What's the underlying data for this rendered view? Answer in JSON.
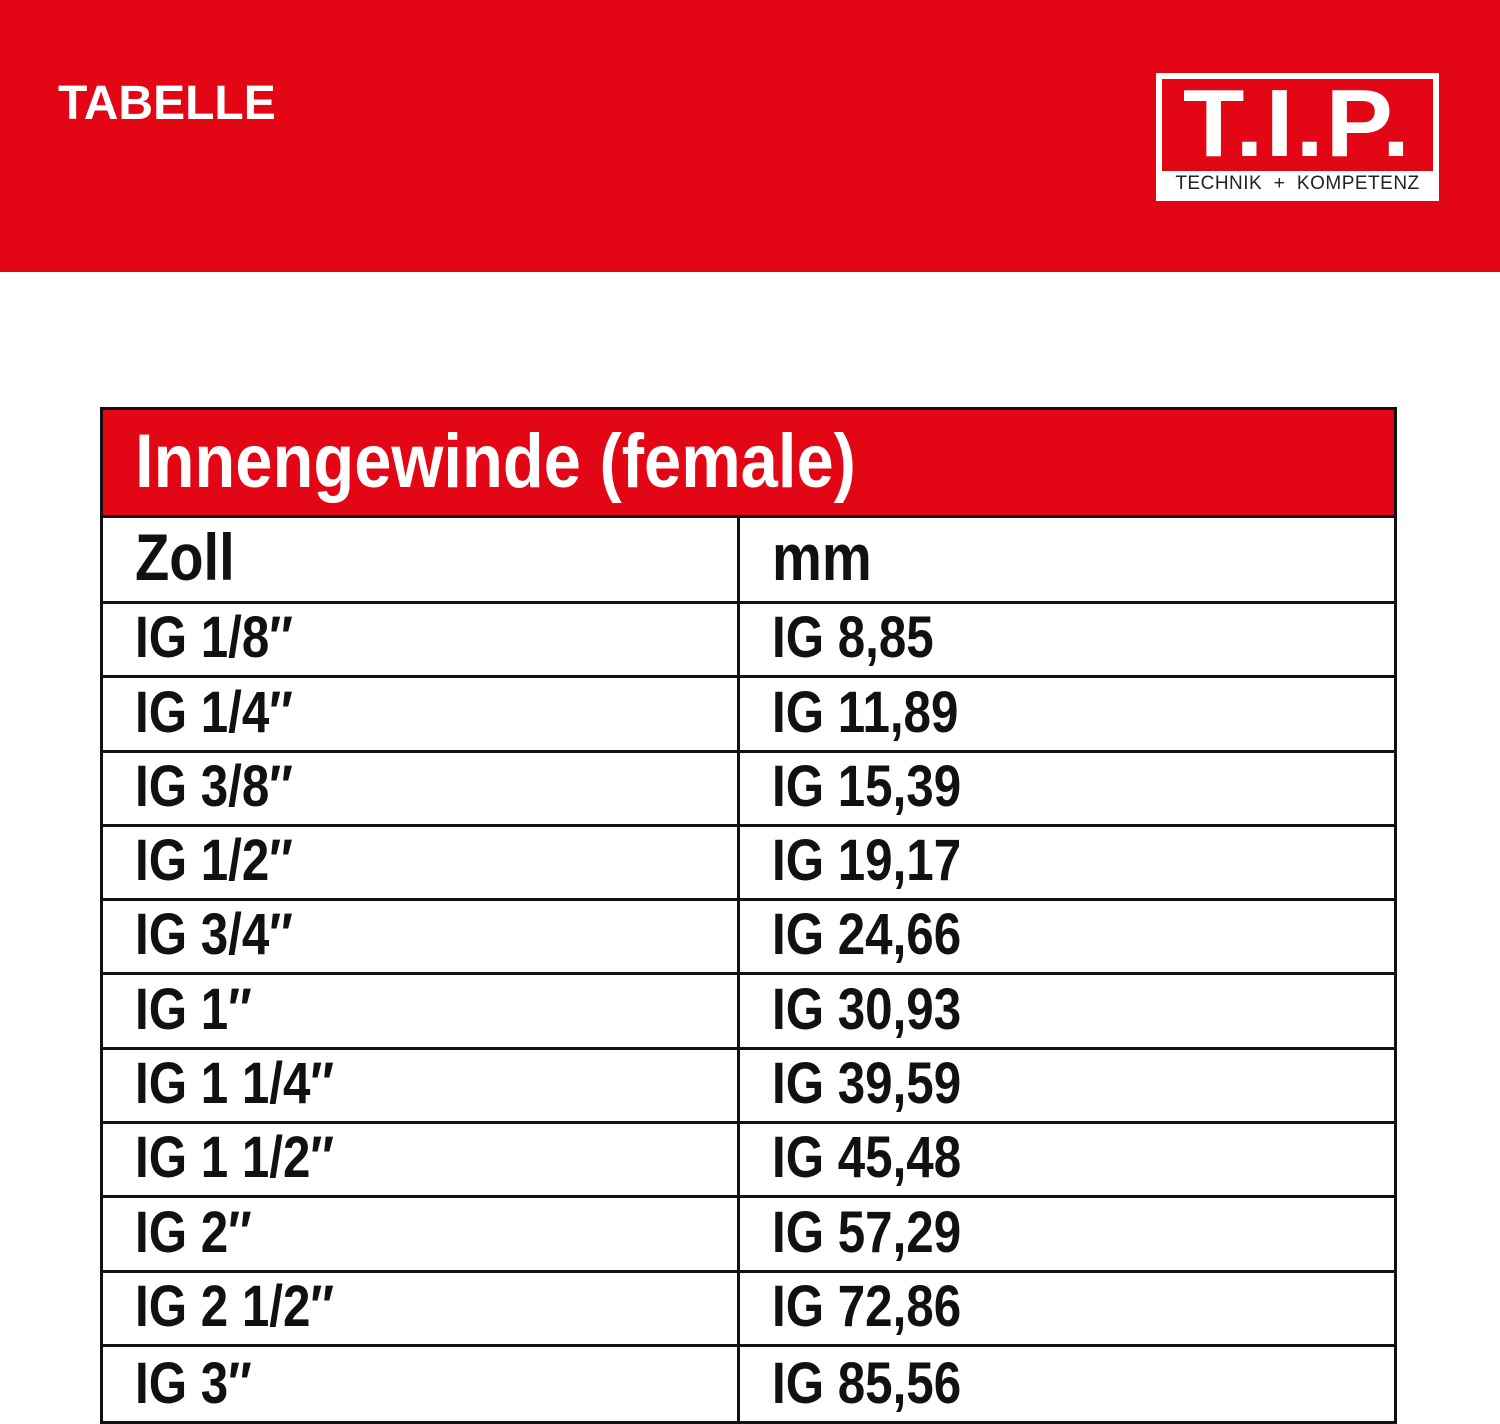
{
  "header": {
    "title": "TABELLE",
    "logo": {
      "mark": "T.I.P.",
      "tagline": "TECHNIK  +  KOMPETENZ"
    },
    "color": "#e30614"
  },
  "table": {
    "title": "Innengewinde (female)",
    "columns": [
      "Zoll",
      "mm"
    ],
    "rows": [
      [
        "IG 1/8″",
        "IG 8,85"
      ],
      [
        "IG 1/4″",
        "IG 11,89"
      ],
      [
        "IG 3/8″",
        "IG 15,39"
      ],
      [
        "IG 1/2″",
        "IG 19,17"
      ],
      [
        "IG 3/4″",
        "IG 24,66"
      ],
      [
        "IG 1″",
        "IG 30,93"
      ],
      [
        "IG 1 1/4″",
        "IG 39,59"
      ],
      [
        "IG 1 1/2″",
        "IG 45,48"
      ],
      [
        "IG 2″",
        "IG 57,29"
      ],
      [
        "IG 2 1/2″",
        "IG 72,86"
      ],
      [
        "IG 3″",
        "IG 85,56"
      ]
    ]
  }
}
